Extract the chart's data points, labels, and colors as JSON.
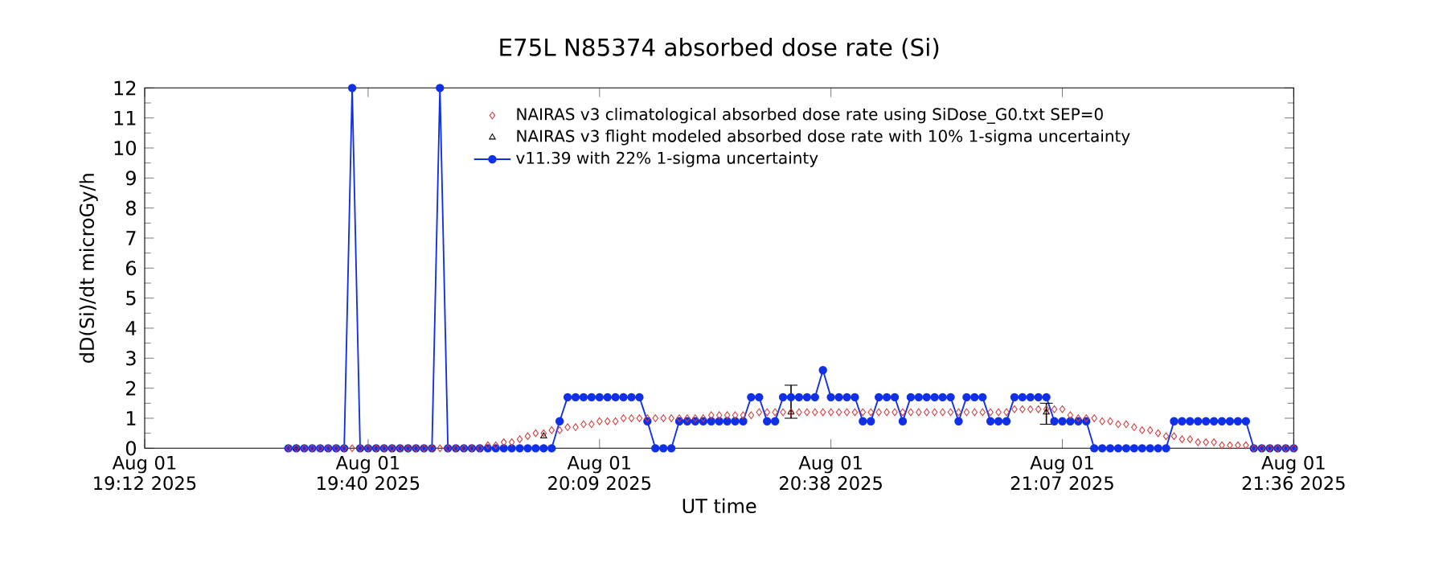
{
  "chart_data": {
    "type": "line",
    "title": "E75L N85374 absorbed dose rate (Si)",
    "xlabel": "UT time",
    "ylabel": "dD(Si)/dt microGy/h",
    "xlim": [
      "2025-08-01T19:12",
      "2025-08-01T21:36"
    ],
    "ylim": [
      0,
      12
    ],
    "xticks": [
      {
        "value": "2025-08-01T19:12",
        "label": "Aug 01 19:12 2025"
      },
      {
        "value": "2025-08-01T19:40",
        "label": "Aug 01 19:40 2025"
      },
      {
        "value": "2025-08-01T20:09",
        "label": "Aug 01 20:09 2025"
      },
      {
        "value": "2025-08-01T20:38",
        "label": "Aug 01 20:38 2025"
      },
      {
        "value": "2025-08-01T21:07",
        "label": "Aug 01 21:07 2025"
      },
      {
        "value": "2025-08-01T21:36",
        "label": "Aug 01 21:36 2025"
      }
    ],
    "yticks": [
      0,
      1,
      2,
      3,
      4,
      5,
      6,
      7,
      8,
      9,
      10,
      11,
      12
    ],
    "legend": "top",
    "x": [
      "2025-08-01T19:30",
      "2025-08-01T19:31",
      "2025-08-01T19:32",
      "2025-08-01T19:33",
      "2025-08-01T19:34",
      "2025-08-01T19:35",
      "2025-08-01T19:36",
      "2025-08-01T19:37",
      "2025-08-01T19:38",
      "2025-08-01T19:39",
      "2025-08-01T19:40",
      "2025-08-01T19:41",
      "2025-08-01T19:42",
      "2025-08-01T19:43",
      "2025-08-01T19:44",
      "2025-08-01T19:45",
      "2025-08-01T19:46",
      "2025-08-01T19:47",
      "2025-08-01T19:48",
      "2025-08-01T19:49",
      "2025-08-01T19:50",
      "2025-08-01T19:51",
      "2025-08-01T19:52",
      "2025-08-01T19:53",
      "2025-08-01T19:54",
      "2025-08-01T19:55",
      "2025-08-01T19:56",
      "2025-08-01T19:57",
      "2025-08-01T19:58",
      "2025-08-01T19:59",
      "2025-08-01T20:00",
      "2025-08-01T20:01",
      "2025-08-01T20:02",
      "2025-08-01T20:03",
      "2025-08-01T20:04",
      "2025-08-01T20:05",
      "2025-08-01T20:06",
      "2025-08-01T20:07",
      "2025-08-01T20:08",
      "2025-08-01T20:09",
      "2025-08-01T20:10",
      "2025-08-01T20:11",
      "2025-08-01T20:12",
      "2025-08-01T20:13",
      "2025-08-01T20:14",
      "2025-08-01T20:15",
      "2025-08-01T20:16",
      "2025-08-01T20:17",
      "2025-08-01T20:18",
      "2025-08-01T20:19",
      "2025-08-01T20:20",
      "2025-08-01T20:21",
      "2025-08-01T20:22",
      "2025-08-01T20:23",
      "2025-08-01T20:24",
      "2025-08-01T20:25",
      "2025-08-01T20:26",
      "2025-08-01T20:27",
      "2025-08-01T20:28",
      "2025-08-01T20:29",
      "2025-08-01T20:30",
      "2025-08-01T20:31",
      "2025-08-01T20:32",
      "2025-08-01T20:33",
      "2025-08-01T20:34",
      "2025-08-01T20:35",
      "2025-08-01T20:36",
      "2025-08-01T20:37",
      "2025-08-01T20:38",
      "2025-08-01T20:39",
      "2025-08-01T20:40",
      "2025-08-01T20:41",
      "2025-08-01T20:42",
      "2025-08-01T20:43",
      "2025-08-01T20:44",
      "2025-08-01T20:45",
      "2025-08-01T20:46",
      "2025-08-01T20:47",
      "2025-08-01T20:48",
      "2025-08-01T20:49",
      "2025-08-01T20:50",
      "2025-08-01T20:51",
      "2025-08-01T20:52",
      "2025-08-01T20:53",
      "2025-08-01T20:54",
      "2025-08-01T20:55",
      "2025-08-01T20:56",
      "2025-08-01T20:57",
      "2025-08-01T20:58",
      "2025-08-01T20:59",
      "2025-08-01T21:00",
      "2025-08-01T21:01",
      "2025-08-01T21:02",
      "2025-08-01T21:03",
      "2025-08-01T21:04",
      "2025-08-01T21:05",
      "2025-08-01T21:06",
      "2025-08-01T21:07",
      "2025-08-01T21:08",
      "2025-08-01T21:09",
      "2025-08-01T21:10",
      "2025-08-01T21:11",
      "2025-08-01T21:12",
      "2025-08-01T21:13",
      "2025-08-01T21:14",
      "2025-08-01T21:15",
      "2025-08-01T21:16",
      "2025-08-01T21:17",
      "2025-08-01T21:18",
      "2025-08-01T21:19",
      "2025-08-01T21:20",
      "2025-08-01T21:21",
      "2025-08-01T21:22",
      "2025-08-01T21:23",
      "2025-08-01T21:24",
      "2025-08-01T21:25",
      "2025-08-01T21:26",
      "2025-08-01T21:27",
      "2025-08-01T21:28",
      "2025-08-01T21:29",
      "2025-08-01T21:30",
      "2025-08-01T21:31",
      "2025-08-01T21:32",
      "2025-08-01T21:33",
      "2025-08-01T21:34",
      "2025-08-01T21:35",
      "2025-08-01T21:36"
    ],
    "series": [
      {
        "name": "NAIRAS v3 climatological absorbed dose rate using SiDose_G0.txt SEP=0",
        "type": "scatter",
        "marker": "diamond",
        "color": "#d03c3c",
        "values": [
          0,
          0,
          0,
          0,
          0,
          0,
          0,
          0,
          0,
          0,
          0,
          0,
          0,
          0,
          0,
          0,
          0,
          0,
          0,
          0,
          0,
          0,
          0,
          0,
          0,
          0.1,
          0.1,
          0.2,
          0.2,
          0.3,
          0.4,
          0.5,
          0.5,
          0.6,
          0.6,
          0.7,
          0.7,
          0.8,
          0.8,
          0.9,
          0.9,
          0.9,
          1.0,
          1.0,
          1.0,
          1.0,
          1.0,
          1.0,
          1.0,
          1.0,
          1.0,
          1.0,
          1.0,
          1.1,
          1.1,
          1.1,
          1.1,
          1.1,
          1.1,
          1.2,
          1.2,
          1.2,
          1.2,
          1.2,
          1.2,
          1.2,
          1.2,
          1.2,
          1.2,
          1.2,
          1.2,
          1.2,
          1.2,
          1.2,
          1.2,
          1.2,
          1.2,
          1.2,
          1.2,
          1.2,
          1.2,
          1.2,
          1.2,
          1.2,
          1.2,
          1.2,
          1.2,
          1.2,
          1.2,
          1.2,
          1.2,
          1.3,
          1.3,
          1.3,
          1.3,
          1.3,
          1.3,
          1.3,
          1.1,
          1.0,
          1.0,
          1.0,
          0.9,
          0.9,
          0.8,
          0.8,
          0.7,
          0.6,
          0.6,
          0.5,
          0.4,
          0.4,
          0.3,
          0.3,
          0.2,
          0.2,
          0.2,
          0.1,
          0.1,
          0.1,
          0.1,
          0,
          0,
          0,
          0,
          0,
          0
        ]
      },
      {
        "name": "NAIRAS v3 flight modeled absorbed dose rate with 10% 1-sigma uncertainty",
        "type": "scatter",
        "marker": "triangle",
        "color": "#000000",
        "x": [
          "2025-08-01T19:31",
          "2025-08-01T20:02",
          "2025-08-01T20:33",
          "2025-08-01T21:05"
        ],
        "values": [
          0,
          0.4,
          1.2,
          1.2
        ],
        "errors": [
          null,
          null,
          [
            1.0,
            2.1
          ],
          [
            0.8,
            1.5
          ]
        ]
      },
      {
        "name": "v11.39 with 22% 1-sigma uncertainty",
        "marker": "circle",
        "color": "#1030e8",
        "values": [
          0,
          0,
          0,
          0,
          0,
          0,
          0,
          0,
          12,
          0,
          0,
          0,
          0,
          0,
          0,
          0,
          0,
          0,
          0,
          12,
          0,
          0,
          0,
          0,
          0,
          0,
          0,
          0,
          0,
          0,
          0,
          0,
          0,
          0,
          0.9,
          1.7,
          1.7,
          1.7,
          1.7,
          1.7,
          1.7,
          1.7,
          1.7,
          1.7,
          1.7,
          0.9,
          0,
          0,
          0,
          0.9,
          0.9,
          0.9,
          0.9,
          0.9,
          0.9,
          0.9,
          0.9,
          0.9,
          1.7,
          1.7,
          0.9,
          0.9,
          1.7,
          1.7,
          1.7,
          1.7,
          1.7,
          2.6,
          1.7,
          1.7,
          1.7,
          1.7,
          0.9,
          0.9,
          1.7,
          1.7,
          1.7,
          0.9,
          1.7,
          1.7,
          1.7,
          1.7,
          1.7,
          1.7,
          0.9,
          1.7,
          1.7,
          1.7,
          0.9,
          0.9,
          0.9,
          1.7,
          1.7,
          1.7,
          1.7,
          1.7,
          0.9,
          0.9,
          0.9,
          0.9,
          0.9,
          0,
          0,
          0,
          0,
          0,
          0,
          0,
          0,
          0,
          0,
          0.9,
          0.9,
          0.9,
          0.9,
          0.9,
          0.9,
          0.9,
          0.9,
          0.9,
          0.9,
          0,
          0,
          0,
          0,
          0,
          0
        ]
      }
    ]
  }
}
